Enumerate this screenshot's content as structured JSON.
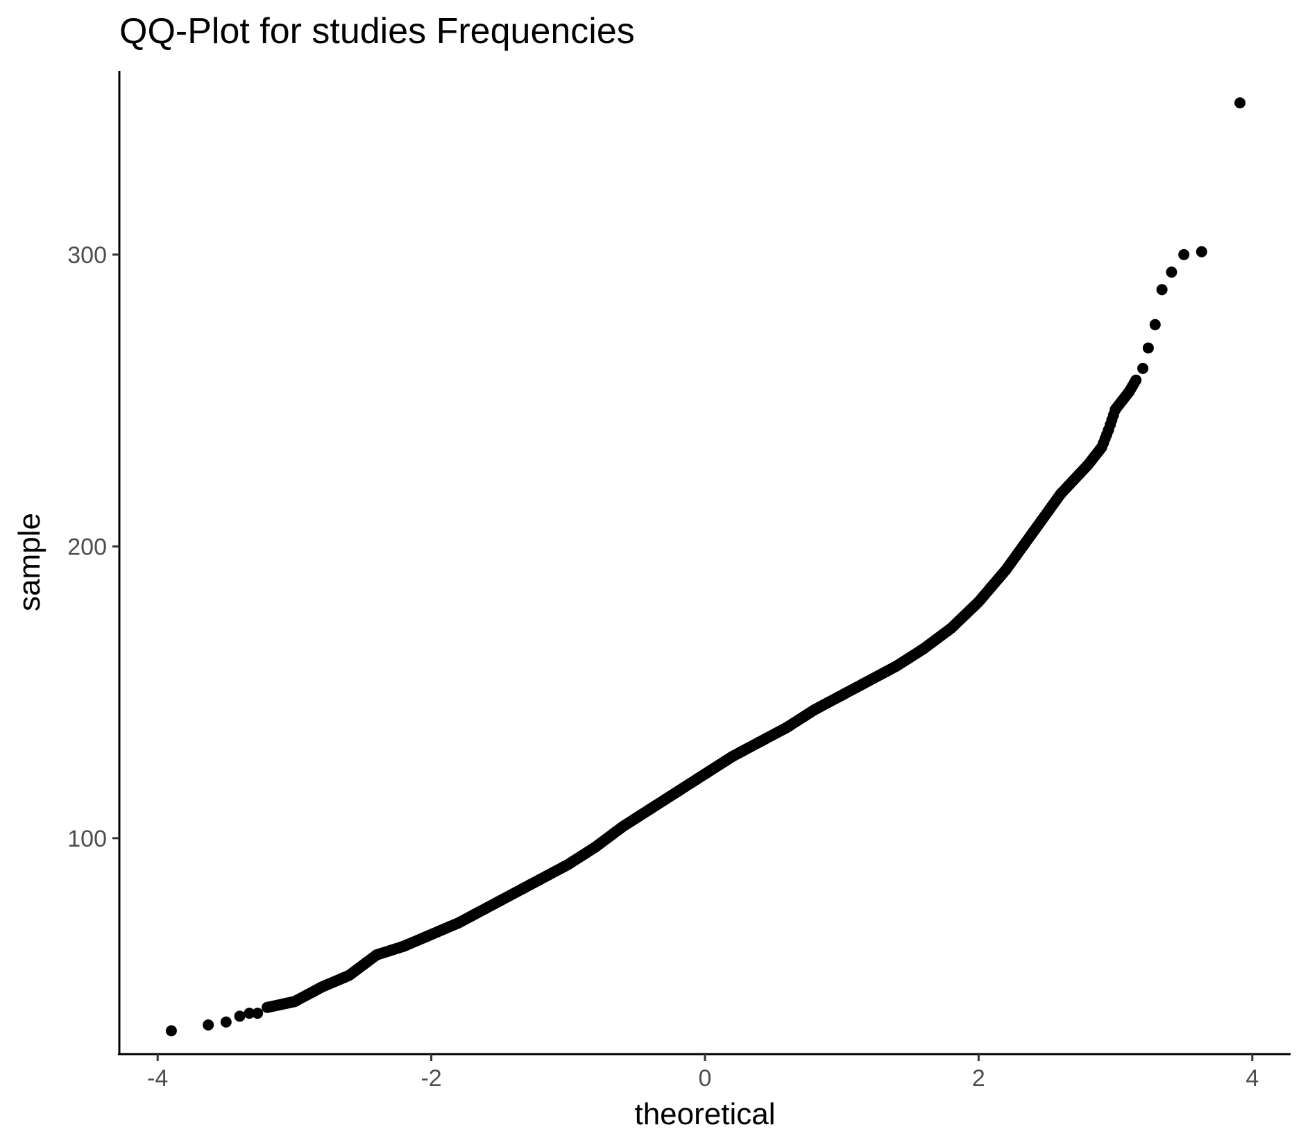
{
  "chart_data": {
    "type": "scatter",
    "title": "QQ-Plot for studies Frequencies",
    "xlabel": "theoretical",
    "ylabel": "sample",
    "xlim": [
      -4.28,
      4.28
    ],
    "ylim": [
      26,
      363
    ],
    "x_ticks": [
      {
        "value": -4,
        "label": "-4"
      },
      {
        "value": -2,
        "label": "-2"
      },
      {
        "value": 0,
        "label": "0"
      },
      {
        "value": 2,
        "label": "2"
      },
      {
        "value": 4,
        "label": "4"
      }
    ],
    "y_ticks": [
      {
        "value": 100,
        "label": "100"
      },
      {
        "value": 200,
        "label": "200"
      },
      {
        "value": 300,
        "label": "300"
      }
    ],
    "grid": false,
    "legend": "none",
    "point_color": "#000000",
    "outlier_points": [
      {
        "x": -3.9,
        "y": 34
      },
      {
        "x": -3.63,
        "y": 36
      },
      {
        "x": -3.5,
        "y": 37
      },
      {
        "x": -3.4,
        "y": 39
      },
      {
        "x": -3.33,
        "y": 40
      },
      {
        "x": -3.27,
        "y": 40
      },
      {
        "x": 3.2,
        "y": 261
      },
      {
        "x": 3.24,
        "y": 268
      },
      {
        "x": 3.29,
        "y": 276
      },
      {
        "x": 3.34,
        "y": 288
      },
      {
        "x": 3.41,
        "y": 294
      },
      {
        "x": 3.5,
        "y": 300
      },
      {
        "x": 3.63,
        "y": 301
      },
      {
        "x": 3.91,
        "y": 352
      }
    ],
    "curve": {
      "x": [
        -3.2,
        -3.0,
        -2.8,
        -2.6,
        -2.4,
        -2.2,
        -2.0,
        -1.8,
        -1.6,
        -1.4,
        -1.2,
        -1.0,
        -0.8,
        -0.6,
        -0.4,
        -0.2,
        0.0,
        0.2,
        0.4,
        0.6,
        0.8,
        1.0,
        1.2,
        1.4,
        1.6,
        1.8,
        2.0,
        2.2,
        2.4,
        2.6,
        2.8,
        2.9,
        2.95,
        3.0,
        3.05,
        3.1,
        3.15
      ],
      "y": [
        42,
        44,
        49,
        53,
        60,
        63,
        67,
        71,
        76,
        81,
        86,
        91,
        97,
        104,
        110,
        116,
        122,
        128,
        133,
        138,
        144,
        149,
        154,
        159,
        165,
        172,
        181,
        192,
        205,
        218,
        228,
        234,
        240,
        247,
        250,
        253,
        257
      ]
    }
  }
}
